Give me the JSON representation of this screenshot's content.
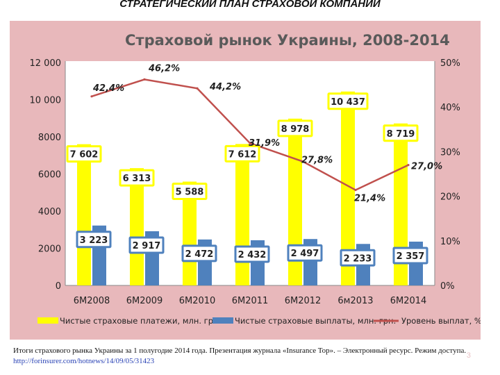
{
  "slide": {
    "title": "СТРАТЕГИЧЕСКИЙ ПЛАН СТРАХОВОЙ КОМПАНИИ",
    "caption_text": "Итоги страхового рынка Украины за 1 полугодие 2014 года. Презентация журнала «Insurance Top». – Электронный ресурс. Режим доступа. ",
    "caption_link": "http://forinsurer.com/hotnews/14/09/05/31423",
    "page_number": "3"
  },
  "chart_data": {
    "type": "bar",
    "title": "Страховой рынок Украины, 2008-2014",
    "categories": [
      "6М2008",
      "6М2009",
      "6М2010",
      "6М2011",
      "6М2012",
      "6м2013",
      "6М2014"
    ],
    "series": [
      {
        "name": "Чистые страховые платежи, млн. грн.",
        "kind": "bar",
        "axis": "left",
        "color": "#ffff00",
        "values": [
          7602,
          6313,
          5588,
          7612,
          8978,
          10437,
          8719
        ],
        "labels": [
          "7 602",
          "6 313",
          "5 588",
          "7 612",
          "8 978",
          "10 437",
          "8 719"
        ]
      },
      {
        "name": "Чистые страховые выплаты, млн. грн.",
        "kind": "bar",
        "axis": "left",
        "color": "#4f81bd",
        "values": [
          3223,
          2917,
          2472,
          2432,
          2497,
          2233,
          2357
        ],
        "labels": [
          "3 223",
          "2 917",
          "2 472",
          "2 432",
          "2 497",
          "2 233",
          "2 357"
        ]
      },
      {
        "name": "Уровень выплат, %",
        "kind": "line",
        "axis": "right",
        "color": "#c0504d",
        "values": [
          42.4,
          46.2,
          44.2,
          31.9,
          27.8,
          21.4,
          27.0
        ],
        "labels": [
          "42,4%",
          "46,2%",
          "44,2%",
          "31,9%",
          "27,8%",
          "21,4%",
          "27,0%"
        ]
      }
    ],
    "ylim_left": [
      0,
      12000
    ],
    "yticks_left": [
      "0",
      "2000",
      "4000",
      "6000",
      "8000",
      "10 000",
      "12 000"
    ],
    "ylim_right": [
      0,
      50
    ],
    "yticks_right": [
      "0%",
      "10%",
      "20%",
      "30%",
      "40%",
      "50%"
    ],
    "grid": false,
    "legend_position": "bottom"
  }
}
